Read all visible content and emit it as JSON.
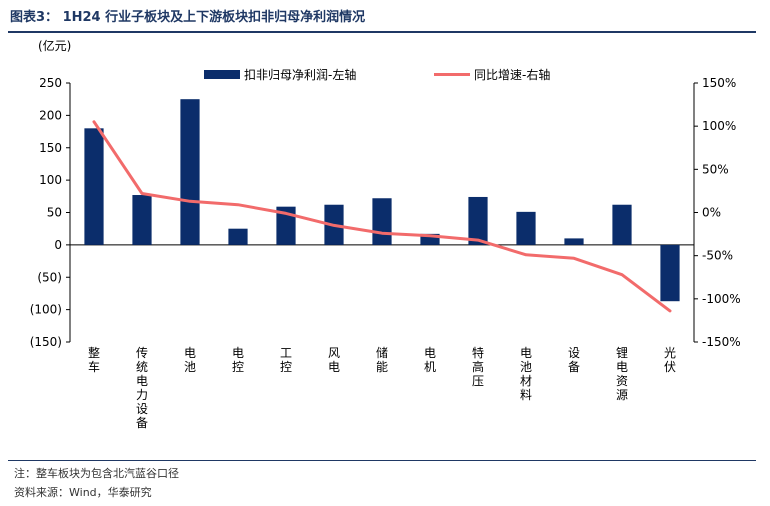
{
  "figure": {
    "title": "图表3：  1H24 行业子板块及上下游板块扣非归母净利润情况",
    "note": "注：整车板块为包含北汽蓝谷口径",
    "source": "资料来源：Wind，华泰研究"
  },
  "colors": {
    "bar": "#0b2d6b",
    "line": "#f26b6b",
    "axis": "#000000",
    "title": "#1f3864"
  },
  "chart_data": {
    "type": "bar",
    "title": "",
    "left_unit": "(亿元)",
    "categories": [
      "整车",
      "传统电力设备",
      "电池",
      "电控",
      "工控",
      "风电",
      "储能",
      "电机",
      "特高压",
      "电池材料",
      "设备",
      "锂电资源",
      "光伏"
    ],
    "series": [
      {
        "name": "扣非归母净利润-左轴",
        "type": "bar",
        "axis": "left",
        "values": [
          180,
          77,
          225,
          25,
          59,
          62,
          72,
          17,
          74,
          51,
          10,
          62,
          -87
        ]
      },
      {
        "name": "同比增速-右轴",
        "type": "line",
        "axis": "right",
        "values": [
          105,
          22,
          13,
          9,
          -1,
          -15,
          -24,
          -27,
          -32,
          -49,
          -53,
          -72,
          -114
        ]
      }
    ],
    "ylim_left": [
      -150,
      250
    ],
    "yticks_left": [
      -150,
      -100,
      -50,
      0,
      50,
      100,
      150,
      200,
      250
    ],
    "yticklabels_left": [
      "(150)",
      "(100)",
      "(50)",
      "0",
      "50",
      "100",
      "150",
      "200",
      "250"
    ],
    "ylim_right": [
      -150,
      150
    ],
    "yticks_right": [
      -150,
      -100,
      -50,
      0,
      50,
      100,
      150
    ],
    "yticklabels_right": [
      "-150%",
      "-100%",
      "-50%",
      "0%",
      "50%",
      "100%",
      "150%"
    ],
    "legend": "top-center",
    "grid": false
  }
}
